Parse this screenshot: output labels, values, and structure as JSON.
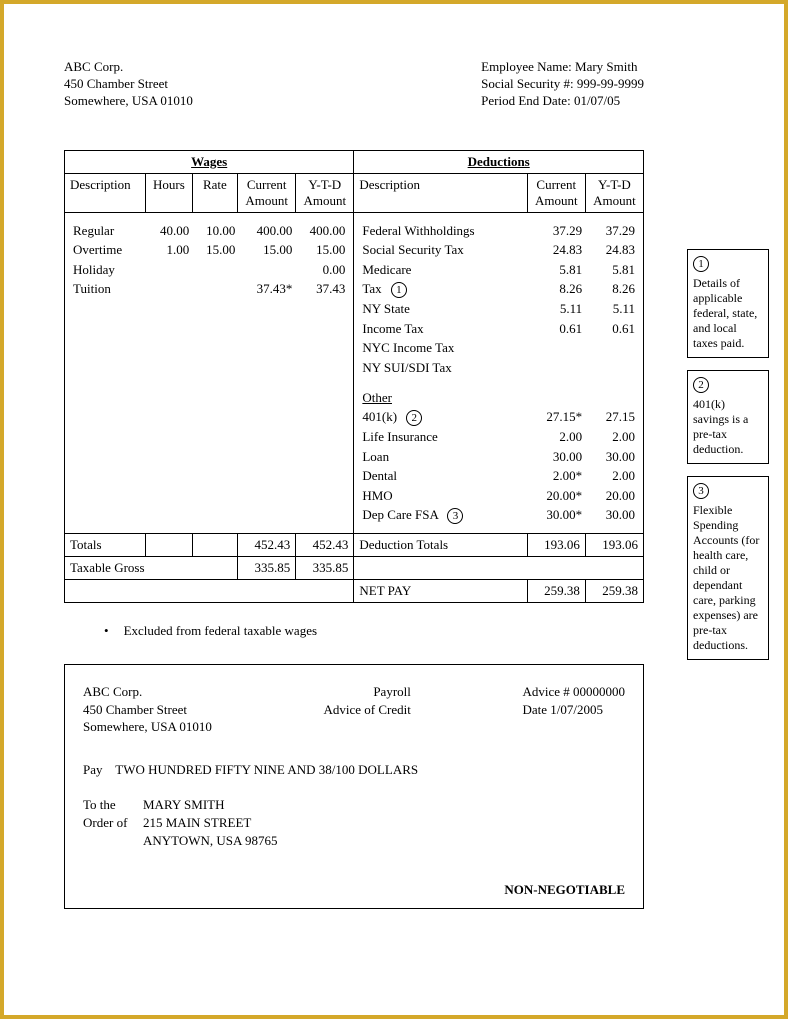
{
  "company": {
    "name": "ABC Corp.",
    "addr1": "450 Chamber Street",
    "addr2": "Somewhere, USA 01010"
  },
  "employee": {
    "name_label": "Employee Name: Mary Smith",
    "ssn_label": "Social Security #: 999-99-9999",
    "period_label": "Period End Date: 01/07/05"
  },
  "headers": {
    "wages": "Wages",
    "deductions": "Deductions",
    "desc": "Description",
    "hours": "Hours",
    "rate": "Rate",
    "cur": "Current Amount",
    "ytd": "Y-T-D Amount",
    "totals": "Totals",
    "taxable": "Taxable Gross",
    "dedtotals": "Deduction Totals",
    "netpay": "NET PAY",
    "other": "Other"
  },
  "wages": [
    {
      "desc": "Regular",
      "hours": "40.00",
      "rate": "10.00",
      "cur": "400.00",
      "ytd": "400.00"
    },
    {
      "desc": "Overtime",
      "hours": "1.00",
      "rate": "15.00",
      "cur": "15.00",
      "ytd": "15.00"
    },
    {
      "desc": "Holiday",
      "hours": "",
      "rate": "",
      "cur": "",
      "ytd": "0.00"
    },
    {
      "desc": "Tuition",
      "hours": "",
      "rate": "",
      "cur": "37.43*",
      "ytd": "37.43"
    }
  ],
  "wage_totals": {
    "cur": "452.43",
    "ytd": "452.43"
  },
  "taxable_gross": {
    "cur": "335.85",
    "ytd": "335.85"
  },
  "deductions_tax": [
    {
      "desc": "Federal Withholdings",
      "cur": "37.29",
      "ytd": "37.29"
    },
    {
      "desc": "Social Security Tax",
      "cur": "24.83",
      "ytd": "24.83"
    },
    {
      "desc": "Medicare",
      "cur": "5.81",
      "ytd": "5.81"
    },
    {
      "desc": "Tax",
      "cur": "8.26",
      "ytd": "8.26",
      "badge": "1"
    },
    {
      "desc": "NY State",
      "cur": "5.11",
      "ytd": "5.11"
    },
    {
      "desc": "Income Tax",
      "cur": "0.61",
      "ytd": "0.61"
    },
    {
      "desc": "NYC Income Tax",
      "cur": "",
      "ytd": ""
    },
    {
      "desc": "NY SUI/SDI Tax",
      "cur": "",
      "ytd": ""
    }
  ],
  "deductions_other": [
    {
      "desc": "401(k)",
      "cur": "27.15*",
      "ytd": "27.15",
      "badge": "2",
      "badge_before": true
    },
    {
      "desc": "Life Insurance",
      "cur": "2.00",
      "ytd": "2.00"
    },
    {
      "desc": "Loan",
      "cur": "30.00",
      "ytd": "30.00"
    },
    {
      "desc": "Dental",
      "cur": "2.00*",
      "ytd": "2.00"
    },
    {
      "desc": "HMO",
      "cur": "20.00*",
      "ytd": "20.00"
    },
    {
      "desc": "Dep Care FSA",
      "cur": "30.00*",
      "ytd": "30.00",
      "badge": "3"
    }
  ],
  "ded_totals": {
    "cur": "193.06",
    "ytd": "193.06"
  },
  "netpay": {
    "cur": "259.38",
    "ytd": "259.38"
  },
  "footnote": "Excluded from federal taxable wages",
  "annotations": [
    {
      "n": "1",
      "text": "Details of applicable federal, state, and local taxes paid."
    },
    {
      "n": "2",
      "text": "401(k) savings is a pre-tax deduction."
    },
    {
      "n": "3",
      "text": "Flexible Spending Accounts (for health care, child or dependant care, parking expenses) are pre-tax deductions."
    }
  ],
  "check": {
    "company": "ABC Corp.",
    "addr1": "450 Chamber Street",
    "addr2": "Somewhere, USA 01010",
    "col2a": "Payroll",
    "col2b": "Advice of Credit",
    "advice": "Advice # 00000000",
    "date": "Date 1/07/2005",
    "pay_label": "Pay",
    "pay_text": "TWO HUNDRED FIFTY NINE AND 38/100 DOLLARS",
    "order_lbl1": "To the",
    "order_lbl2": "Order of",
    "payee_name": "MARY SMITH",
    "payee_addr1": "215 MAIN STREET",
    "payee_addr2": "ANYTOWN, USA  98765",
    "nonneg": "NON-NEGOTIABLE"
  }
}
